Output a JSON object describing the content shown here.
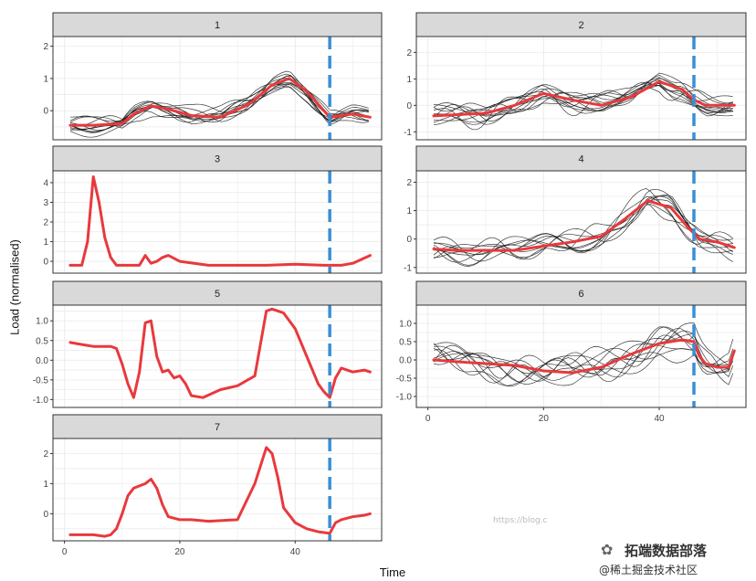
{
  "chart_data": {
    "type": "line",
    "layout": "facet-wrap, 2 columns, 7 panels",
    "xlabel": "Time",
    "ylabel": "Load (normalised)",
    "x_ticks": [
      "0",
      "20",
      "40"
    ],
    "xlim": [
      -2,
      55
    ],
    "vline_x": 46,
    "colors": {
      "strip_bg": "#d9d9d9",
      "thin_lines": "#1a1a1a",
      "mean_line": "#e8393d",
      "vline": "#3a8fd6",
      "grid": "#ebebeb"
    },
    "panels": [
      {
        "label": "1",
        "ylim": [
          -0.9,
          2.3
        ],
        "y_ticks": [
          "0",
          "1",
          "2"
        ],
        "y_tick_values": [
          0,
          1,
          2
        ],
        "mean": {
          "x": [
            1,
            5,
            10,
            12,
            15,
            18,
            22,
            27,
            32,
            36,
            39,
            42,
            44,
            46,
            48,
            50,
            53
          ],
          "y": [
            -0.45,
            -0.45,
            -0.4,
            -0.1,
            0.15,
            0.05,
            -0.15,
            -0.2,
            0.2,
            0.8,
            1.0,
            0.6,
            0.2,
            -0.2,
            -0.15,
            -0.1,
            -0.2
          ]
        },
        "spread": 0.25,
        "members": 12
      },
      {
        "label": "2",
        "ylim": [
          -1.3,
          2.6
        ],
        "y_ticks": [
          "-1",
          "0",
          "1",
          "2"
        ],
        "y_tick_values": [
          -1,
          0,
          1,
          2
        ],
        "mean": {
          "x": [
            1,
            5,
            10,
            15,
            20,
            25,
            30,
            35,
            40,
            44,
            46,
            48,
            50,
            53
          ],
          "y": [
            -0.4,
            -0.35,
            -0.3,
            0.0,
            0.45,
            0.2,
            0.0,
            0.3,
            0.9,
            0.6,
            0.2,
            0.0,
            0.0,
            0.0
          ]
        },
        "spread": 0.35,
        "members": 12
      },
      {
        "label": "3",
        "ylim": [
          -0.6,
          4.6
        ],
        "y_ticks": [
          "0",
          "1",
          "2",
          "3",
          "4"
        ],
        "y_tick_values": [
          0,
          1,
          2,
          3,
          4
        ],
        "mean": {
          "x": [
            1,
            3,
            4,
            5,
            6,
            7,
            8,
            9,
            10,
            13,
            14,
            15,
            16,
            17,
            18,
            20,
            25,
            30,
            35,
            40,
            45,
            48,
            50,
            53
          ],
          "y": [
            -0.2,
            -0.2,
            1.0,
            4.3,
            3.0,
            1.2,
            0.2,
            -0.2,
            -0.2,
            -0.2,
            0.3,
            -0.1,
            0.0,
            0.2,
            0.3,
            0.0,
            -0.2,
            -0.2,
            -0.2,
            -0.15,
            -0.2,
            -0.2,
            -0.1,
            0.3
          ]
        },
        "spread": 0,
        "members": 0
      },
      {
        "label": "4",
        "ylim": [
          -1.2,
          2.4
        ],
        "y_ticks": [
          "-1",
          "0",
          "1",
          "2"
        ],
        "y_tick_values": [
          -1,
          0,
          1,
          2
        ],
        "mean": {
          "x": [
            1,
            5,
            10,
            15,
            20,
            25,
            30,
            34,
            38,
            42,
            45,
            47,
            50,
            53
          ],
          "y": [
            -0.35,
            -0.4,
            -0.4,
            -0.4,
            -0.25,
            -0.1,
            0.1,
            0.7,
            1.35,
            1.1,
            0.4,
            0.0,
            -0.1,
            -0.3
          ]
        },
        "spread": 0.35,
        "members": 10
      },
      {
        "label": "5",
        "ylim": [
          -1.2,
          1.4
        ],
        "y_ticks": [
          "-1.0",
          "-0.5",
          "0.0",
          "0.5",
          "1.0"
        ],
        "y_tick_values": [
          -1,
          -0.5,
          0,
          0.5,
          1
        ],
        "mean": {
          "x": [
            1,
            3,
            5,
            8,
            9,
            10,
            11,
            12,
            13,
            14,
            15,
            16,
            17,
            18,
            19,
            20,
            21,
            22,
            24,
            27,
            30,
            33,
            35,
            36,
            38,
            40,
            42,
            44,
            45,
            46,
            47,
            48,
            50,
            52,
            53
          ],
          "y": [
            0.45,
            0.4,
            0.35,
            0.35,
            0.3,
            -0.1,
            -0.6,
            -0.95,
            -0.3,
            0.95,
            1.0,
            0.1,
            -0.3,
            -0.25,
            -0.45,
            -0.4,
            -0.6,
            -0.9,
            -0.95,
            -0.75,
            -0.65,
            -0.4,
            1.25,
            1.3,
            1.2,
            0.8,
            0.1,
            -0.6,
            -0.8,
            -0.95,
            -0.45,
            -0.2,
            -0.3,
            -0.25,
            -0.3
          ]
        },
        "spread": 0,
        "members": 0
      },
      {
        "label": "6",
        "ylim": [
          -1.3,
          1.5
        ],
        "y_ticks": [
          "-1.0",
          "-0.5",
          "0.0",
          "0.5",
          "1.0"
        ],
        "y_tick_values": [
          -1,
          -0.5,
          0,
          0.5,
          1
        ],
        "mean": {
          "x": [
            1,
            5,
            10,
            15,
            20,
            25,
            30,
            35,
            40,
            44,
            46,
            47,
            48,
            50,
            52,
            53
          ],
          "y": [
            0.0,
            -0.05,
            -0.1,
            -0.15,
            -0.3,
            -0.35,
            -0.2,
            0.15,
            0.45,
            0.55,
            0.5,
            0.1,
            -0.1,
            -0.2,
            -0.2,
            0.25
          ]
        },
        "spread": 0.45,
        "members": 10
      },
      {
        "label": "7",
        "ylim": [
          -0.9,
          2.5
        ],
        "y_ticks": [
          "0",
          "1",
          "2"
        ],
        "y_tick_values": [
          0,
          1,
          2
        ],
        "mean": {
          "x": [
            1,
            5,
            7,
            8,
            9,
            10,
            11,
            12,
            14,
            15,
            16,
            17,
            18,
            20,
            22,
            25,
            30,
            33,
            35,
            36,
            37,
            38,
            40,
            42,
            44,
            46,
            47,
            48,
            50,
            52,
            53
          ],
          "y": [
            -0.7,
            -0.7,
            -0.75,
            -0.7,
            -0.5,
            0.0,
            0.6,
            0.85,
            1.0,
            1.15,
            0.85,
            0.3,
            -0.1,
            -0.2,
            -0.2,
            -0.25,
            -0.2,
            1.0,
            2.2,
            2.0,
            1.2,
            0.2,
            -0.3,
            -0.5,
            -0.6,
            -0.65,
            -0.3,
            -0.2,
            -0.1,
            -0.05,
            0.0
          ]
        },
        "spread": 0,
        "members": 0
      }
    ]
  },
  "watermarks": {
    "brand": "拓端数据部落",
    "community": "@稀土掘金技术社区",
    "blog": "https://blog.c"
  }
}
